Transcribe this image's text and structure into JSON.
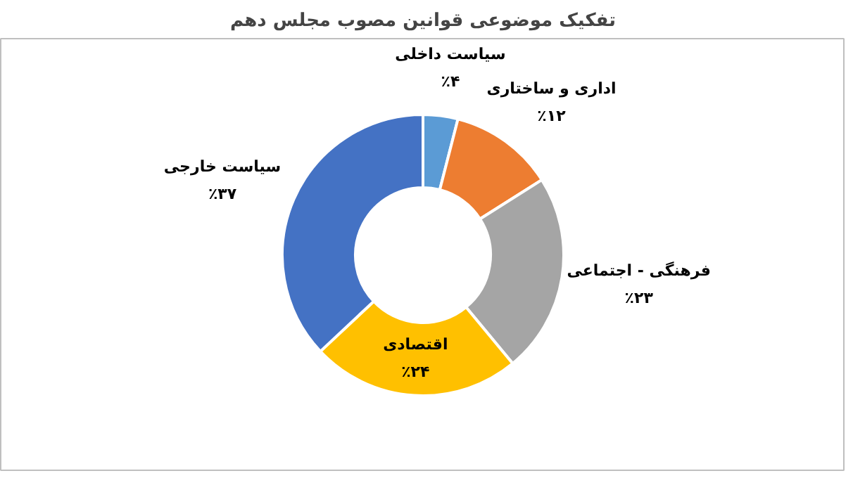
{
  "chart_data": {
    "type": "donut",
    "title": "تفکیک موضوعی قوانین مصوب مجلس دهم",
    "categories": [
      "سیاست داخلی",
      "اداری و ساختاری",
      "فرهنگی - اجتماعی",
      "اقتصادی",
      "سیاست خارجی"
    ],
    "values": [
      4,
      12,
      23,
      24,
      37
    ],
    "colors": [
      "#5b9bd5",
      "#ed7d31",
      "#a5a5a5",
      "#ffc000",
      "#4472c4"
    ],
    "value_labels": [
      "٪۴",
      "٪۱۲",
      "٪۲۳",
      "٪۲۴",
      "٪۳۷"
    ]
  }
}
